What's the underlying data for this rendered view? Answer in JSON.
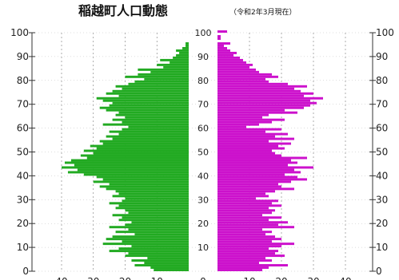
{
  "chart_data": {
    "type": "bar",
    "orientation": "horizontal-pyramid",
    "title": "稲越町人口動態",
    "subtitle": "（令和2年3月現在）",
    "age_range": [
      0,
      100
    ],
    "xlim": [
      0,
      40
    ],
    "age_ticks": [
      0,
      10,
      20,
      30,
      40,
      50,
      60,
      70,
      80,
      90,
      100
    ],
    "age_tick_labels": [
      "0",
      "10",
      "20",
      "30",
      "40",
      "50",
      "60",
      "70",
      "80",
      "90",
      "100"
    ],
    "x_ticks": [
      40,
      30,
      20,
      10,
      0,
      10,
      20,
      30,
      40
    ],
    "x_tick_labels": [
      "40",
      "30",
      "20",
      "10",
      "0",
      "10",
      "20",
      "30",
      "40"
    ],
    "grid": true,
    "ages": [
      0,
      1,
      2,
      3,
      4,
      5,
      6,
      7,
      8,
      9,
      10,
      11,
      12,
      13,
      14,
      15,
      16,
      17,
      18,
      19,
      20,
      21,
      22,
      23,
      24,
      25,
      26,
      27,
      28,
      29,
      30,
      31,
      32,
      33,
      34,
      35,
      36,
      37,
      38,
      39,
      40,
      41,
      42,
      43,
      44,
      45,
      46,
      47,
      48,
      49,
      50,
      51,
      52,
      53,
      54,
      55,
      56,
      57,
      58,
      59,
      60,
      61,
      62,
      63,
      64,
      65,
      66,
      67,
      68,
      69,
      70,
      71,
      72,
      73,
      74,
      75,
      76,
      77,
      78,
      79,
      80,
      81,
      82,
      83,
      84,
      85,
      86,
      87,
      88,
      89,
      90,
      91,
      92,
      93,
      94,
      95,
      96,
      97,
      98,
      99,
      100
    ],
    "series": [
      {
        "side": "left",
        "color": "#22aa22",
        "values": [
          11,
          12,
          17,
          14,
          18,
          13,
          20,
          19,
          25,
          22,
          18,
          27,
          21,
          26,
          24,
          17,
          23,
          19,
          25,
          20,
          18,
          22,
          21,
          24,
          19,
          20,
          23,
          22,
          25,
          21,
          20,
          24,
          22,
          23,
          26,
          28,
          25,
          30,
          27,
          29,
          33,
          38,
          35,
          40,
          36,
          39,
          37,
          32,
          34,
          30,
          33,
          29,
          31,
          27,
          28,
          24,
          26,
          22,
          25,
          21,
          19,
          27,
          21,
          24,
          20,
          23,
          22,
          26,
          28,
          25,
          24,
          27,
          29,
          22,
          26,
          24,
          21,
          23,
          19,
          17,
          14,
          20,
          16,
          12,
          16,
          8,
          10,
          6,
          9,
          5,
          4,
          3,
          4,
          2,
          1,
          1,
          0,
          0,
          0,
          0,
          0
        ]
      },
      {
        "side": "right",
        "color": "#cc11cc",
        "values": [
          14,
          16,
          22,
          13,
          17,
          15,
          21,
          18,
          19,
          16,
          20,
          24,
          17,
          20,
          18,
          15,
          17,
          14,
          24,
          19,
          22,
          16,
          20,
          14,
          17,
          18,
          16,
          20,
          17,
          19,
          12,
          16,
          15,
          18,
          24,
          20,
          19,
          23,
          28,
          25,
          21,
          26,
          24,
          30,
          22,
          25,
          23,
          28,
          20,
          18,
          17,
          21,
          19,
          23,
          16,
          24,
          18,
          22,
          15,
          20,
          9,
          13,
          17,
          21,
          14,
          16,
          25,
          21,
          27,
          29,
          31,
          29,
          33,
          27,
          30,
          26,
          24,
          28,
          22,
          16,
          15,
          19,
          17,
          13,
          12,
          10,
          11,
          9,
          8,
          7,
          5,
          6,
          4,
          3,
          2,
          4,
          0,
          1,
          1,
          0,
          3
        ]
      }
    ]
  }
}
